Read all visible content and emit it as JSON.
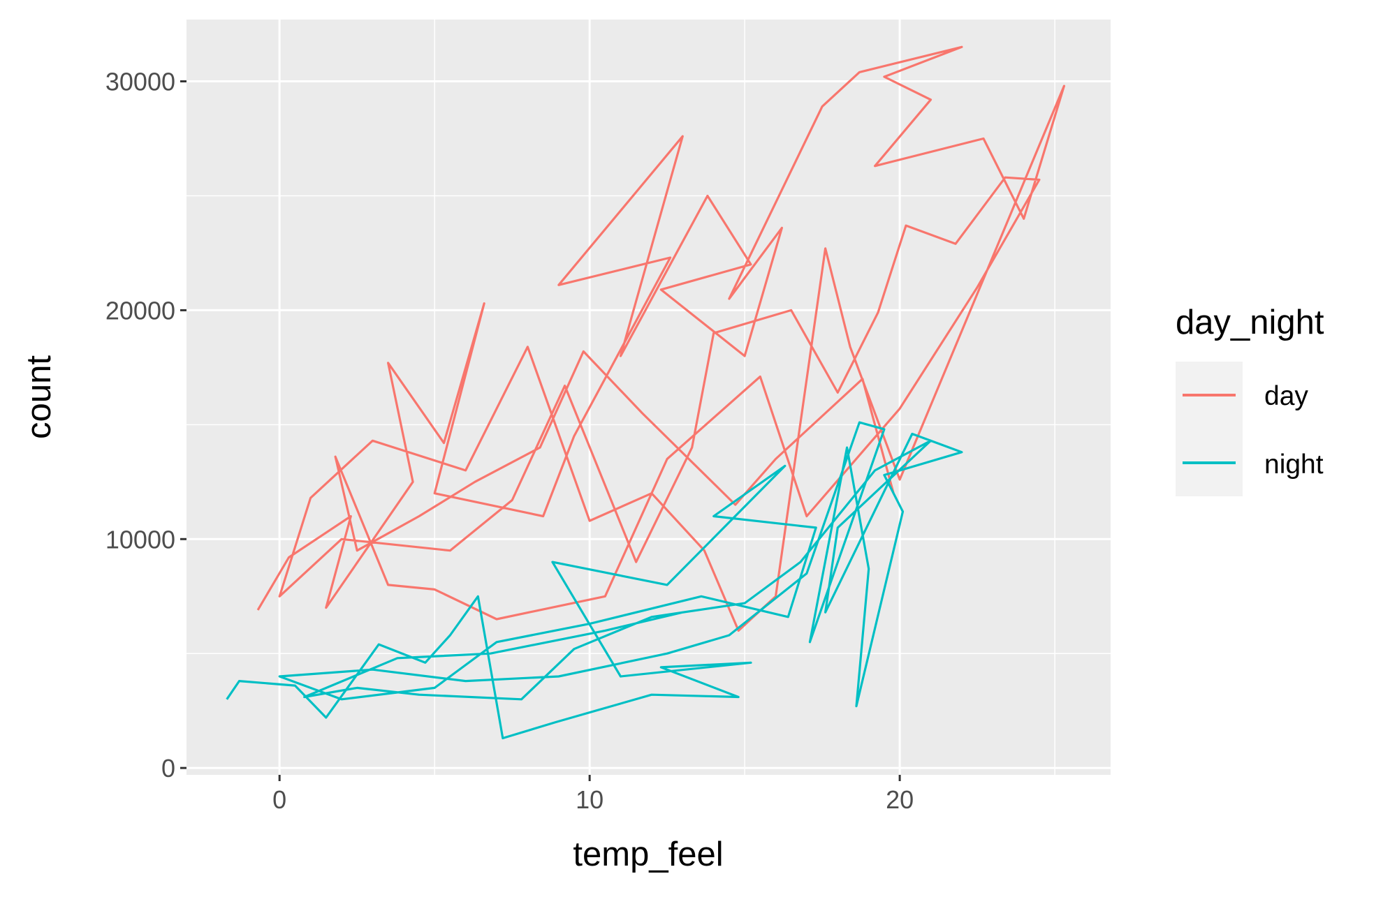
{
  "chart_data": {
    "type": "line",
    "title": "",
    "xlabel": "temp_feel",
    "ylabel": "count",
    "xlim": [
      -3,
      26.8
    ],
    "ylim": [
      -300,
      32700
    ],
    "x_ticks": [
      0,
      10,
      20
    ],
    "x_tick_labels": [
      "0",
      "10",
      "20"
    ],
    "y_ticks": [
      0,
      10000,
      20000,
      30000
    ],
    "y_tick_labels": [
      "0",
      "10000",
      "20000",
      "30000"
    ],
    "x_minor": [
      5,
      15,
      25
    ],
    "y_minor": [
      5000,
      15000,
      25000
    ],
    "grid": true,
    "legend": {
      "title": "day_night",
      "placement": "right",
      "entries": [
        "day",
        "night"
      ]
    },
    "series": [
      {
        "name": "day",
        "color": "#F8766D",
        "points": [
          [
            -0.7,
            6900
          ],
          [
            0.3,
            9200
          ],
          [
            2.3,
            11000
          ],
          [
            1.5,
            7000
          ],
          [
            4.3,
            12500
          ],
          [
            3.5,
            17700
          ],
          [
            5.3,
            14200
          ],
          [
            6.6,
            20300
          ],
          [
            5.0,
            12000
          ],
          [
            8.5,
            11000
          ],
          [
            9.5,
            14500
          ],
          [
            12.6,
            22300
          ],
          [
            9.0,
            21100
          ],
          [
            13.0,
            27600
          ],
          [
            11.0,
            18000
          ],
          [
            13.8,
            25000
          ],
          [
            15.2,
            22000
          ],
          [
            12.3,
            20900
          ],
          [
            15.0,
            18000
          ],
          [
            16.2,
            23600
          ],
          [
            14.5,
            20500
          ],
          [
            17.5,
            28900
          ],
          [
            18.7,
            30400
          ],
          [
            22.0,
            31500
          ],
          [
            19.5,
            30200
          ],
          [
            21.0,
            29200
          ],
          [
            19.2,
            26300
          ],
          [
            22.7,
            27500
          ],
          [
            24.0,
            24000
          ],
          [
            25.3,
            29800
          ],
          [
            20.0,
            12600
          ],
          [
            18.4,
            18400
          ],
          [
            17.6,
            22700
          ],
          [
            16.0,
            7500
          ],
          [
            14.8,
            6000
          ],
          [
            13.7,
            9500
          ],
          [
            12.0,
            12000
          ],
          [
            10.0,
            10800
          ],
          [
            8.0,
            18400
          ],
          [
            6.0,
            13000
          ],
          [
            3.0,
            14300
          ],
          [
            1.0,
            11800
          ],
          [
            0.0,
            7500
          ],
          [
            2.0,
            10000
          ],
          [
            5.5,
            9500
          ],
          [
            7.5,
            11700
          ],
          [
            9.2,
            16700
          ],
          [
            11.5,
            9000
          ],
          [
            13.3,
            14000
          ],
          [
            14.0,
            19000
          ],
          [
            16.5,
            20000
          ],
          [
            18.0,
            16400
          ],
          [
            19.3,
            19900
          ],
          [
            20.2,
            23700
          ],
          [
            21.8,
            22900
          ],
          [
            23.4,
            25800
          ],
          [
            24.5,
            25700
          ],
          [
            22.5,
            21000
          ],
          [
            20.0,
            15700
          ],
          [
            17.0,
            11000
          ],
          [
            15.5,
            17100
          ],
          [
            12.5,
            13500
          ],
          [
            10.5,
            7500
          ],
          [
            7.0,
            6500
          ],
          [
            5.0,
            7800
          ],
          [
            3.5,
            8000
          ],
          [
            1.8,
            13600
          ],
          [
            2.5,
            9500
          ],
          [
            4.5,
            11000
          ],
          [
            6.3,
            12500
          ],
          [
            8.4,
            14000
          ],
          [
            9.8,
            18200
          ],
          [
            11.7,
            15500
          ],
          [
            14.7,
            11500
          ],
          [
            16.0,
            13500
          ],
          [
            18.8,
            17000
          ],
          [
            19.8,
            12000
          ]
        ]
      },
      {
        "name": "night",
        "color": "#00BFC4",
        "points": [
          [
            -1.7,
            3000
          ],
          [
            -1.3,
            3800
          ],
          [
            0.5,
            3600
          ],
          [
            1.5,
            2200
          ],
          [
            3.2,
            5400
          ],
          [
            4.7,
            4600
          ],
          [
            5.5,
            5800
          ],
          [
            6.4,
            7500
          ],
          [
            7.2,
            1300
          ],
          [
            8.9,
            2000
          ],
          [
            12.0,
            3200
          ],
          [
            14.8,
            3100
          ],
          [
            12.3,
            4400
          ],
          [
            15.2,
            4600
          ],
          [
            11.0,
            4000
          ],
          [
            8.8,
            9000
          ],
          [
            12.5,
            8000
          ],
          [
            16.3,
            13200
          ],
          [
            14.0,
            11000
          ],
          [
            17.3,
            10500
          ],
          [
            16.4,
            6600
          ],
          [
            13.6,
            7500
          ],
          [
            10.0,
            6300
          ],
          [
            7.0,
            5500
          ],
          [
            5.0,
            3500
          ],
          [
            2.0,
            3000
          ],
          [
            0.0,
            4000
          ],
          [
            3.0,
            4300
          ],
          [
            6.0,
            3800
          ],
          [
            9.0,
            4000
          ],
          [
            12.5,
            5000
          ],
          [
            14.5,
            5800
          ],
          [
            17.0,
            8500
          ],
          [
            18.7,
            15100
          ],
          [
            19.5,
            14800
          ],
          [
            17.1,
            5500
          ],
          [
            18.3,
            14000
          ],
          [
            19.0,
            8700
          ],
          [
            18.6,
            2700
          ],
          [
            20.1,
            11200
          ],
          [
            19.5,
            12800
          ],
          [
            22.0,
            13800
          ],
          [
            20.4,
            14600
          ],
          [
            17.6,
            6800
          ],
          [
            18.0,
            10500
          ],
          [
            21.0,
            14300
          ],
          [
            19.2,
            13000
          ],
          [
            16.8,
            9000
          ],
          [
            15.0,
            7200
          ],
          [
            12.0,
            6600
          ],
          [
            9.5,
            5200
          ],
          [
            7.8,
            3000
          ],
          [
            4.5,
            3200
          ],
          [
            2.5,
            3500
          ],
          [
            0.8,
            3100
          ],
          [
            3.8,
            4800
          ],
          [
            6.8,
            5000
          ],
          [
            10.5,
            6000
          ],
          [
            13.0,
            6800
          ]
        ]
      }
    ]
  }
}
